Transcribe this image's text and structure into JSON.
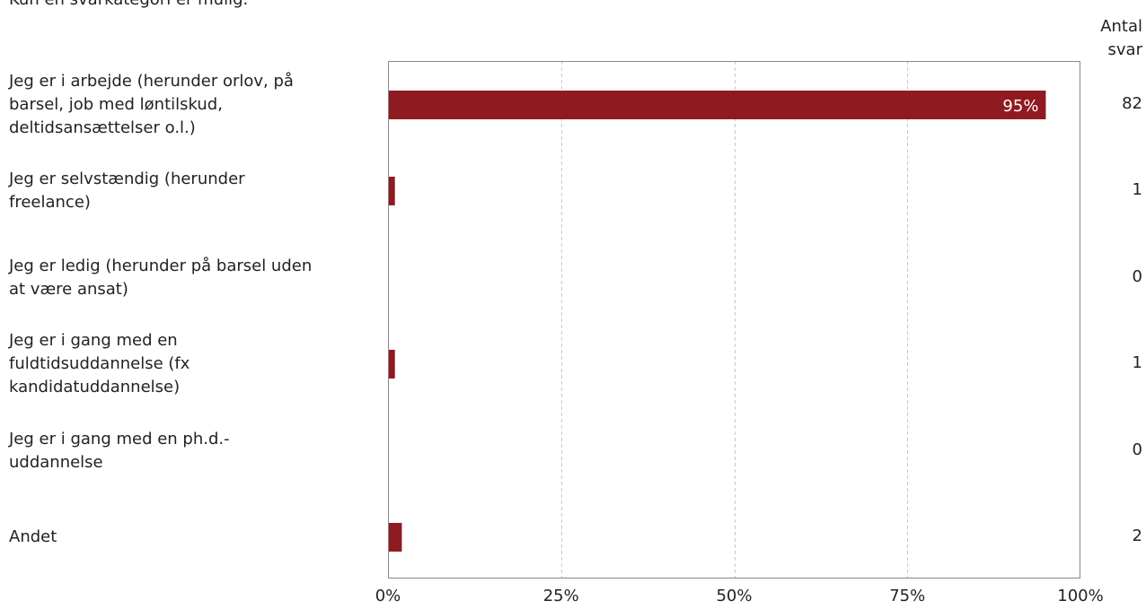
{
  "subtitle": "Kun én svarkategori er mulig.",
  "count_header": [
    "Antal",
    "svar"
  ],
  "chart_data": {
    "type": "bar",
    "orientation": "horizontal",
    "categories": [
      [
        "Jeg er i arbejde (herunder orlov, på",
        "barsel, job med løntilskud,",
        "deltidsansættelser o.l.)"
      ],
      [
        "Jeg er selvstændig (herunder",
        "freelance)"
      ],
      [
        "Jeg er ledig (herunder på barsel uden",
        "at være ansat)"
      ],
      [
        "Jeg er i gang med en",
        "fuldtidsuddannelse (fx",
        "kandidatuddannelse)"
      ],
      [
        "Jeg er i gang med en ph.d.-",
        "uddannelse"
      ],
      [
        "Andet"
      ]
    ],
    "values": [
      95,
      1,
      0,
      1,
      0,
      2
    ],
    "counts": [
      "82",
      "1",
      "0",
      "1",
      "0",
      "2"
    ],
    "data_labels": [
      "95%",
      "",
      "",
      "",
      "",
      ""
    ],
    "xlim": [
      0,
      100
    ],
    "xticks": [
      0,
      25,
      50,
      75,
      100
    ],
    "xtick_labels": [
      "0%",
      "25%",
      "50%",
      "75%",
      "100%"
    ],
    "grid": "vertical-dashed",
    "bar_color": "#8f1a20",
    "data_label_color": "#ffffff"
  }
}
